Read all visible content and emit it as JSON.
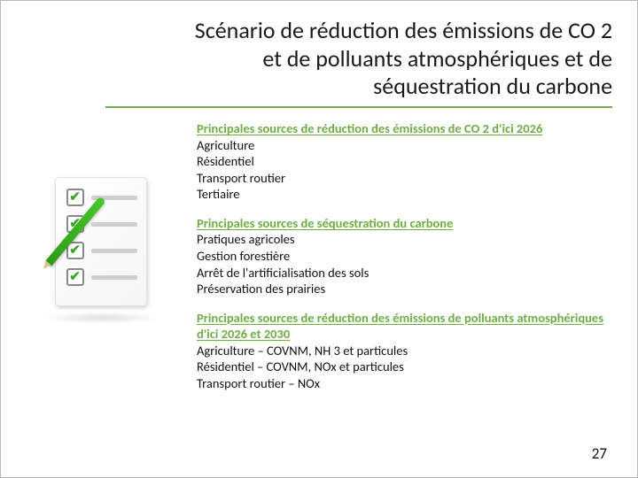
{
  "title_lines": [
    "Scénario de réduction des émissions de CO 2",
    "et de polluants atmosphériques et de",
    "séquestration du carbone"
  ],
  "sections": [
    {
      "heading": "Principales sources de réduction des émissions de CO 2 d'ici 2026",
      "items": [
        "Agriculture",
        "Résidentiel",
        "Transport routier",
        "Tertiaire"
      ]
    },
    {
      "heading": "Principales sources de séquestration du carbone",
      "items": [
        "Pratiques agricoles",
        "Gestion forestière",
        "Arrêt de l'artificialisation des sols",
        "Préservation des prairies"
      ]
    },
    {
      "heading": "Principales sources de réduction des émissions de polluants atmosphériques d'ici 2026 et 2030",
      "items": [
        "Agriculture – COVNM, NH 3 et particules",
        "Résidentiel – COVNM, NOx et particules",
        "Transport routier – NOx"
      ]
    }
  ],
  "page_number": "27",
  "colors": {
    "accent": "#70ad47",
    "text": "#111111",
    "check": "#3fa52a"
  }
}
